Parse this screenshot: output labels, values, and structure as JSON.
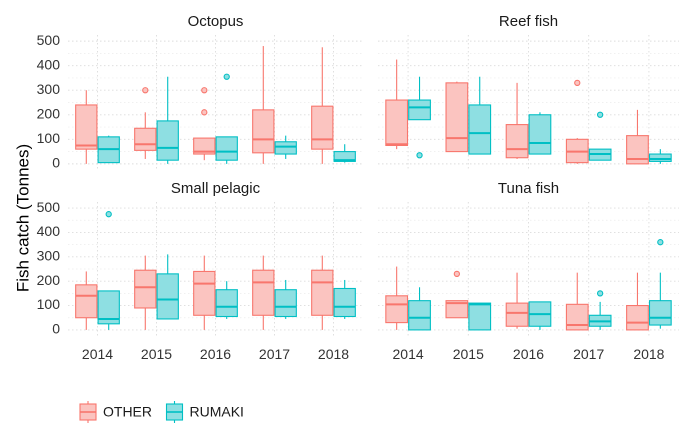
{
  "chart_data": {
    "type": "box",
    "ylabel": "Fish catch (Tonnes)",
    "xlabel": "",
    "categories": [
      "2014",
      "2015",
      "2016",
      "2017",
      "2018"
    ],
    "yticks": [
      0,
      100,
      200,
      300,
      400,
      500
    ],
    "ylim": [
      -25,
      525
    ],
    "grid": true,
    "legend": {
      "position": "bottom-left",
      "entries": [
        {
          "name": "OTHER",
          "color": "#F8766D",
          "fill": "#FBC4C0"
        },
        {
          "name": "RUMAKI",
          "color": "#00BFC4",
          "fill": "#8EDFE2"
        }
      ]
    },
    "panels": [
      {
        "title": "Octopus",
        "series": [
          {
            "name": "OTHER",
            "boxes": [
              {
                "x": "2014",
                "min": 0,
                "q1": 60,
                "median": 75,
                "q3": 240,
                "max": 300,
                "outliers": []
              },
              {
                "x": "2015",
                "min": 20,
                "q1": 55,
                "median": 80,
                "q3": 145,
                "max": 210,
                "outliers": [
                  300
                ]
              },
              {
                "x": "2016",
                "min": 15,
                "q1": 40,
                "median": 50,
                "q3": 105,
                "max": 105,
                "outliers": [
                  210,
                  300
                ]
              },
              {
                "x": "2017",
                "min": 0,
                "q1": 45,
                "median": 100,
                "q3": 220,
                "max": 480,
                "outliers": []
              },
              {
                "x": "2018",
                "min": 0,
                "q1": 60,
                "median": 100,
                "q3": 235,
                "max": 475,
                "outliers": []
              }
            ]
          },
          {
            "name": "RUMAKI",
            "boxes": [
              {
                "x": "2014",
                "min": 5,
                "q1": 5,
                "median": 60,
                "q3": 110,
                "max": 115,
                "outliers": []
              },
              {
                "x": "2015",
                "min": 0,
                "q1": 15,
                "median": 65,
                "q3": 175,
                "max": 355,
                "outliers": []
              },
              {
                "x": "2016",
                "min": 0,
                "q1": 15,
                "median": 50,
                "q3": 110,
                "max": 110,
                "outliers": [
                  355
                ]
              },
              {
                "x": "2017",
                "min": 20,
                "q1": 40,
                "median": 70,
                "q3": 90,
                "max": 115,
                "outliers": []
              },
              {
                "x": "2018",
                "min": 5,
                "q1": 10,
                "median": 15,
                "q3": 50,
                "max": 80,
                "outliers": []
              }
            ]
          }
        ]
      },
      {
        "title": "Reef fish",
        "series": [
          {
            "name": "OTHER",
            "boxes": [
              {
                "x": "2014",
                "min": 60,
                "q1": 75,
                "median": 80,
                "q3": 260,
                "max": 425,
                "outliers": []
              },
              {
                "x": "2015",
                "min": 50,
                "q1": 50,
                "median": 105,
                "q3": 330,
                "max": 335,
                "outliers": []
              },
              {
                "x": "2016",
                "min": 20,
                "q1": 25,
                "median": 60,
                "q3": 160,
                "max": 330,
                "outliers": []
              },
              {
                "x": "2017",
                "min": 0,
                "q1": 5,
                "median": 50,
                "q3": 100,
                "max": 105,
                "outliers": [
                  330
                ]
              },
              {
                "x": "2018",
                "min": 0,
                "q1": 0,
                "median": 20,
                "q3": 115,
                "max": 220,
                "outliers": []
              }
            ]
          },
          {
            "name": "RUMAKI",
            "boxes": [
              {
                "x": "2014",
                "min": 180,
                "q1": 180,
                "median": 230,
                "q3": 260,
                "max": 355,
                "outliers": [
                  35
                ]
              },
              {
                "x": "2015",
                "min": 40,
                "q1": 40,
                "median": 125,
                "q3": 240,
                "max": 355,
                "outliers": []
              },
              {
                "x": "2016",
                "min": 40,
                "q1": 40,
                "median": 85,
                "q3": 200,
                "max": 210,
                "outliers": []
              },
              {
                "x": "2017",
                "min": 15,
                "q1": 15,
                "median": 40,
                "q3": 60,
                "max": 60,
                "outliers": [
                  200
                ]
              },
              {
                "x": "2018",
                "min": 0,
                "q1": 10,
                "median": 20,
                "q3": 40,
                "max": 60,
                "outliers": []
              }
            ]
          }
        ]
      },
      {
        "title": "Small pelagic",
        "series": [
          {
            "name": "OTHER",
            "boxes": [
              {
                "x": "2014",
                "min": 0,
                "q1": 50,
                "median": 140,
                "q3": 185,
                "max": 240,
                "outliers": []
              },
              {
                "x": "2015",
                "min": 0,
                "q1": 90,
                "median": 175,
                "q3": 245,
                "max": 305,
                "outliers": []
              },
              {
                "x": "2016",
                "min": 0,
                "q1": 60,
                "median": 190,
                "q3": 240,
                "max": 305,
                "outliers": []
              },
              {
                "x": "2017",
                "min": 0,
                "q1": 60,
                "median": 195,
                "q3": 245,
                "max": 305,
                "outliers": []
              },
              {
                "x": "2018",
                "min": 0,
                "q1": 60,
                "median": 195,
                "q3": 245,
                "max": 305,
                "outliers": []
              }
            ]
          },
          {
            "name": "RUMAKI",
            "boxes": [
              {
                "x": "2014",
                "min": 0,
                "q1": 25,
                "median": 45,
                "q3": 160,
                "max": 160,
                "outliers": [
                  475
                ]
              },
              {
                "x": "2015",
                "min": 45,
                "q1": 45,
                "median": 125,
                "q3": 230,
                "max": 310,
                "outliers": []
              },
              {
                "x": "2016",
                "min": 45,
                "q1": 55,
                "median": 95,
                "q3": 165,
                "max": 200,
                "outliers": []
              },
              {
                "x": "2017",
                "min": 45,
                "q1": 55,
                "median": 95,
                "q3": 165,
                "max": 205,
                "outliers": []
              },
              {
                "x": "2018",
                "min": 45,
                "q1": 55,
                "median": 95,
                "q3": 170,
                "max": 205,
                "outliers": []
              }
            ]
          }
        ]
      },
      {
        "title": "Tuna fish",
        "series": [
          {
            "name": "OTHER",
            "boxes": [
              {
                "x": "2014",
                "min": 0,
                "q1": 30,
                "median": 105,
                "q3": 140,
                "max": 260,
                "outliers": []
              },
              {
                "x": "2015",
                "min": 50,
                "q1": 50,
                "median": 110,
                "q3": 120,
                "max": 120,
                "outliers": [
                  230
                ]
              },
              {
                "x": "2016",
                "min": 5,
                "q1": 15,
                "median": 70,
                "q3": 110,
                "max": 235,
                "outliers": []
              },
              {
                "x": "2017",
                "min": 0,
                "q1": 0,
                "median": 20,
                "q3": 105,
                "max": 235,
                "outliers": []
              },
              {
                "x": "2018",
                "min": 0,
                "q1": 0,
                "median": 30,
                "q3": 100,
                "max": 235,
                "outliers": []
              }
            ]
          },
          {
            "name": "RUMAKI",
            "boxes": [
              {
                "x": "2014",
                "min": 0,
                "q1": 0,
                "median": 50,
                "q3": 120,
                "max": 175,
                "outliers": []
              },
              {
                "x": "2015",
                "min": 0,
                "q1": 0,
                "median": 105,
                "q3": 110,
                "max": 110,
                "outliers": []
              },
              {
                "x": "2016",
                "min": 0,
                "q1": 15,
                "median": 65,
                "q3": 115,
                "max": 115,
                "outliers": []
              },
              {
                "x": "2017",
                "min": 0,
                "q1": 15,
                "median": 35,
                "q3": 60,
                "max": 115,
                "outliers": [
                  150
                ]
              },
              {
                "x": "2018",
                "min": 5,
                "q1": 20,
                "median": 50,
                "q3": 120,
                "max": 235,
                "outliers": [
                  360
                ]
              }
            ]
          }
        ]
      }
    ]
  }
}
